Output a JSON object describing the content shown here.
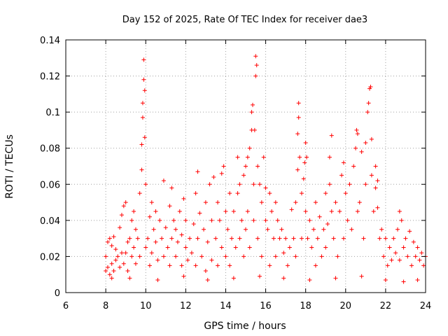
{
  "chart_data": {
    "type": "scatter",
    "title": "Day 152 of 2025, Rate Of TEC Index for receiver dae3",
    "xlabel": "GPS time / hours",
    "ylabel": "ROTI / TECUs",
    "xlim": [
      6,
      24
    ],
    "ylim": [
      0,
      0.14
    ],
    "x_ticks": [
      6,
      8,
      10,
      12,
      14,
      16,
      18,
      20,
      22,
      24
    ],
    "x_tick_labels": [
      "6",
      "8",
      "10",
      "12",
      "14",
      "16",
      "18",
      "20",
      "22",
      "24"
    ],
    "y_ticks": [
      0,
      0.02,
      0.04,
      0.06,
      0.08,
      0.1,
      0.12,
      0.14
    ],
    "y_tick_labels": [
      "0",
      "0.02",
      "0.04",
      "0.06",
      "0.08",
      "0.1",
      "0.12",
      "0.14"
    ],
    "grid": true,
    "marker": "plus",
    "color": "#ff0000",
    "series": [
      {
        "points": [
          [
            8.0,
            0.012
          ],
          [
            8.0,
            0.02
          ],
          [
            8.1,
            0.014
          ],
          [
            8.1,
            0.028
          ],
          [
            8.2,
            0.01
          ],
          [
            8.2,
            0.03
          ],
          [
            8.3,
            0.016
          ],
          [
            8.3,
            0.026
          ],
          [
            8.4,
            0.012
          ],
          [
            8.4,
            0.031
          ],
          [
            8.5,
            0.018
          ],
          [
            8.5,
            0.024
          ],
          [
            8.6,
            0.02
          ],
          [
            8.7,
            0.014
          ],
          [
            8.7,
            0.036
          ],
          [
            8.8,
            0.022
          ],
          [
            8.8,
            0.043
          ],
          [
            8.9,
            0.016
          ],
          [
            8.9,
            0.048
          ],
          [
            9.0,
            0.05
          ],
          [
            9.0,
            0.022
          ],
          [
            9.1,
            0.028
          ],
          [
            9.1,
            0.012
          ],
          [
            9.2,
            0.03
          ],
          [
            9.3,
            0.02
          ],
          [
            9.3,
            0.04
          ],
          [
            9.4,
            0.025
          ],
          [
            9.4,
            0.045
          ],
          [
            9.5,
            0.016
          ],
          [
            9.5,
            0.035
          ],
          [
            9.6,
            0.03
          ],
          [
            9.7,
            0.055
          ],
          [
            9.7,
            0.02
          ],
          [
            9.8,
            0.068
          ],
          [
            9.8,
            0.082
          ],
          [
            9.85,
            0.097
          ],
          [
            9.85,
            0.105
          ],
          [
            9.9,
            0.118
          ],
          [
            9.9,
            0.129
          ],
          [
            9.95,
            0.112
          ],
          [
            9.95,
            0.086
          ],
          [
            10.0,
            0.06
          ],
          [
            10.0,
            0.025
          ],
          [
            10.1,
            0.03
          ],
          [
            10.2,
            0.042
          ],
          [
            10.2,
            0.015
          ],
          [
            10.3,
            0.05
          ],
          [
            10.3,
            0.022
          ],
          [
            10.4,
            0.035
          ],
          [
            10.5,
            0.028
          ],
          [
            10.5,
            0.045
          ],
          [
            10.6,
            0.018
          ],
          [
            10.7,
            0.04
          ],
          [
            10.8,
            0.03
          ],
          [
            10.9,
            0.062
          ],
          [
            10.9,
            0.02
          ],
          [
            11.0,
            0.036
          ],
          [
            11.1,
            0.025
          ],
          [
            11.2,
            0.048
          ],
          [
            11.2,
            0.015
          ],
          [
            11.3,
            0.058
          ],
          [
            11.3,
            0.03
          ],
          [
            11.4,
            0.04
          ],
          [
            11.5,
            0.02
          ],
          [
            11.5,
            0.035
          ],
          [
            11.6,
            0.028
          ],
          [
            11.7,
            0.045
          ],
          [
            11.8,
            0.015
          ],
          [
            11.8,
            0.032
          ],
          [
            11.9,
            0.052
          ],
          [
            12.0,
            0.025
          ],
          [
            12.0,
            0.04
          ],
          [
            12.1,
            0.018
          ],
          [
            12.2,
            0.03
          ],
          [
            12.3,
            0.022
          ],
          [
            12.4,
            0.038
          ],
          [
            12.5,
            0.015
          ],
          [
            12.5,
            0.055
          ],
          [
            12.6,
            0.067
          ],
          [
            12.6,
            0.03
          ],
          [
            12.7,
            0.044
          ],
          [
            12.8,
            0.02
          ],
          [
            12.9,
            0.035
          ],
          [
            13.0,
            0.05
          ],
          [
            13.0,
            0.012
          ],
          [
            13.1,
            0.028
          ],
          [
            13.2,
            0.06
          ],
          [
            13.3,
            0.04
          ],
          [
            13.3,
            0.018
          ],
          [
            13.4,
            0.064
          ],
          [
            13.5,
            0.03
          ],
          [
            13.6,
            0.05
          ],
          [
            13.6,
            0.015
          ],
          [
            13.7,
            0.04
          ],
          [
            13.8,
            0.066
          ],
          [
            13.8,
            0.025
          ],
          [
            13.9,
            0.07
          ],
          [
            14.0,
            0.045
          ],
          [
            14.0,
            0.02
          ],
          [
            14.1,
            0.035
          ],
          [
            14.2,
            0.055
          ],
          [
            14.2,
            0.015
          ],
          [
            14.3,
            0.03
          ],
          [
            14.4,
            0.045
          ],
          [
            14.5,
            0.025
          ],
          [
            14.6,
            0.055
          ],
          [
            14.6,
            0.075
          ],
          [
            14.7,
            0.06
          ],
          [
            14.7,
            0.03
          ],
          [
            14.8,
            0.04
          ],
          [
            14.9,
            0.065
          ],
          [
            14.9,
            0.02
          ],
          [
            15.0,
            0.07
          ],
          [
            15.0,
            0.035
          ],
          [
            15.1,
            0.075
          ],
          [
            15.1,
            0.045
          ],
          [
            15.2,
            0.08
          ],
          [
            15.2,
            0.025
          ],
          [
            15.3,
            0.09
          ],
          [
            15.3,
            0.1
          ],
          [
            15.35,
            0.104
          ],
          [
            15.4,
            0.06
          ],
          [
            15.4,
            0.04
          ],
          [
            15.45,
            0.09
          ],
          [
            15.5,
            0.12
          ],
          [
            15.5,
            0.131
          ],
          [
            15.55,
            0.126
          ],
          [
            15.6,
            0.07
          ],
          [
            15.6,
            0.03
          ],
          [
            15.7,
            0.06
          ],
          [
            15.8,
            0.05
          ],
          [
            15.8,
            0.02
          ],
          [
            15.9,
            0.075
          ],
          [
            16.0,
            0.04
          ],
          [
            16.0,
            0.058
          ],
          [
            16.1,
            0.035
          ],
          [
            16.2,
            0.055
          ],
          [
            16.2,
            0.015
          ],
          [
            16.3,
            0.045
          ],
          [
            16.4,
            0.03
          ],
          [
            16.5,
            0.05
          ],
          [
            16.5,
            0.02
          ],
          [
            16.6,
            0.04
          ],
          [
            16.7,
            0.03
          ],
          [
            16.8,
            0.035
          ],
          [
            16.9,
            0.022
          ],
          [
            17.0,
            0.03
          ],
          [
            17.1,
            0.015
          ],
          [
            17.2,
            0.025
          ],
          [
            17.3,
            0.046
          ],
          [
            17.4,
            0.03
          ],
          [
            17.5,
            0.05
          ],
          [
            17.5,
            0.02
          ],
          [
            17.6,
            0.068
          ],
          [
            17.6,
            0.088
          ],
          [
            17.65,
            0.097
          ],
          [
            17.65,
            0.105
          ],
          [
            17.7,
            0.075
          ],
          [
            17.8,
            0.055
          ],
          [
            17.8,
            0.03
          ],
          [
            17.9,
            0.063
          ],
          [
            17.95,
            0.072
          ],
          [
            18.0,
            0.083
          ],
          [
            18.0,
            0.045
          ],
          [
            18.05,
            0.075
          ],
          [
            18.1,
            0.03
          ],
          [
            18.2,
            0.04
          ],
          [
            18.3,
            0.025
          ],
          [
            18.4,
            0.035
          ],
          [
            18.5,
            0.05
          ],
          [
            18.5,
            0.015
          ],
          [
            18.6,
            0.03
          ],
          [
            18.7,
            0.042
          ],
          [
            18.8,
            0.02
          ],
          [
            18.9,
            0.035
          ],
          [
            19.0,
            0.055
          ],
          [
            19.0,
            0.025
          ],
          [
            19.1,
            0.038
          ],
          [
            19.2,
            0.06
          ],
          [
            19.2,
            0.075
          ],
          [
            19.3,
            0.087
          ],
          [
            19.3,
            0.045
          ],
          [
            19.4,
            0.03
          ],
          [
            19.5,
            0.05
          ],
          [
            19.6,
            0.02
          ],
          [
            19.7,
            0.045
          ],
          [
            19.8,
            0.065
          ],
          [
            19.9,
            0.072
          ],
          [
            19.9,
            0.03
          ],
          [
            20.0,
            0.055
          ],
          [
            20.1,
            0.04
          ],
          [
            20.2,
            0.06
          ],
          [
            20.3,
            0.035
          ],
          [
            20.4,
            0.07
          ],
          [
            20.5,
            0.08
          ],
          [
            20.55,
            0.09
          ],
          [
            20.6,
            0.088
          ],
          [
            20.6,
            0.045
          ],
          [
            20.7,
            0.05
          ],
          [
            20.8,
            0.078
          ],
          [
            20.9,
            0.03
          ],
          [
            21.0,
            0.083
          ],
          [
            21.0,
            0.06
          ],
          [
            21.1,
            0.1
          ],
          [
            21.15,
            0.105
          ],
          [
            21.2,
            0.113
          ],
          [
            21.25,
            0.114
          ],
          [
            21.3,
            0.085
          ],
          [
            21.3,
            0.065
          ],
          [
            21.4,
            0.045
          ],
          [
            21.5,
            0.07
          ],
          [
            21.5,
            0.058
          ],
          [
            21.6,
            0.062
          ],
          [
            21.6,
            0.047
          ],
          [
            21.7,
            0.03
          ],
          [
            21.8,
            0.035
          ],
          [
            21.9,
            0.02
          ],
          [
            22.0,
            0.03
          ],
          [
            22.1,
            0.015
          ],
          [
            22.2,
            0.025
          ],
          [
            22.3,
            0.018
          ],
          [
            22.4,
            0.03
          ],
          [
            22.5,
            0.022
          ],
          [
            22.6,
            0.035
          ],
          [
            22.7,
            0.045
          ],
          [
            22.7,
            0.018
          ],
          [
            22.8,
            0.04
          ],
          [
            22.9,
            0.025
          ],
          [
            23.0,
            0.03
          ],
          [
            23.1,
            0.02
          ],
          [
            23.2,
            0.034
          ],
          [
            23.3,
            0.015
          ],
          [
            23.4,
            0.028
          ],
          [
            23.5,
            0.02
          ],
          [
            23.6,
            0.025
          ],
          [
            23.7,
            0.018
          ],
          [
            23.8,
            0.022
          ],
          [
            23.9,
            0.015
          ],
          [
            24.0,
            0.02
          ],
          [
            8.3,
            0.008
          ],
          [
            9.2,
            0.008
          ],
          [
            10.6,
            0.007
          ],
          [
            11.9,
            0.009
          ],
          [
            13.1,
            0.007
          ],
          [
            14.4,
            0.008
          ],
          [
            15.7,
            0.009
          ],
          [
            16.9,
            0.008
          ],
          [
            18.2,
            0.007
          ],
          [
            19.5,
            0.008
          ],
          [
            20.8,
            0.009
          ],
          [
            22.0,
            0.007
          ],
          [
            22.9,
            0.006
          ],
          [
            23.6,
            0.007
          ]
        ]
      }
    ]
  }
}
